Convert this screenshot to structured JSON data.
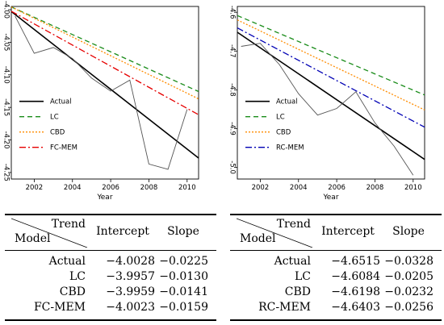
{
  "chart_data": [
    {
      "type": "line",
      "xlabel": "Year",
      "ylabel": "",
      "xlim": [
        2000.8,
        2010.6
      ],
      "ylim": [
        -4.26,
        -3.995
      ],
      "xticks": [
        2002,
        2004,
        2006,
        2008,
        2010
      ],
      "yticks": [
        -4.0,
        -4.05,
        -4.1,
        -4.15,
        -4.2,
        -4.25
      ],
      "ytick_labels": [
        "-4.00",
        "-4.05",
        "-4.10",
        "-4.15",
        "-4.20",
        "-4.25"
      ],
      "grid": false,
      "legend_position": "center-left",
      "series": [
        {
          "name": "Actual",
          "kind": "trend",
          "color": "#000000",
          "dash": "",
          "width": 1.6,
          "x": [
            2000.8,
            2010.6
          ],
          "y": [
            -4.0028,
            -4.2278
          ]
        },
        {
          "name": "",
          "kind": "observed",
          "color": "#555555",
          "dash": "",
          "width": 0.9,
          "x": [
            2001,
            2002,
            2003,
            2004,
            2005,
            2006,
            2007,
            2008,
            2009,
            2010
          ],
          "y": [
            -4.01,
            -4.067,
            -4.058,
            -4.075,
            -4.105,
            -4.125,
            -4.108,
            -4.237,
            -4.245,
            -4.153
          ]
        },
        {
          "name": "LC",
          "kind": "trend",
          "color": "#1a8c1a",
          "dash": "6,4",
          "width": 1.3,
          "x": [
            2000.8,
            2010.6
          ],
          "y": [
            -3.9957,
            -4.1257
          ]
        },
        {
          "name": "CBD",
          "kind": "trend",
          "color": "#ff8c00",
          "dash": "2,2",
          "width": 1.3,
          "x": [
            2000.8,
            2010.6
          ],
          "y": [
            -3.9959,
            -4.1369
          ]
        },
        {
          "name": "FC-MEM",
          "kind": "trend",
          "color": "#e60000",
          "dash": "8,3,2,3",
          "width": 1.3,
          "x": [
            2000.8,
            2010.6
          ],
          "y": [
            -4.0023,
            -4.1613
          ]
        }
      ]
    },
    {
      "type": "line",
      "xlabel": "Year",
      "ylabel": "",
      "xlim": [
        2000.8,
        2010.6
      ],
      "ylim": [
        -5.03,
        -4.585
      ],
      "xticks": [
        2002,
        2004,
        2006,
        2008,
        2010
      ],
      "yticks": [
        -4.6,
        -4.7,
        -4.8,
        -4.9,
        -5.0
      ],
      "ytick_labels": [
        "-4.6",
        "-4.7",
        "-4.8",
        "-4.9",
        "-5.0"
      ],
      "grid": false,
      "legend_position": "center-left",
      "series": [
        {
          "name": "Actual",
          "kind": "trend",
          "color": "#000000",
          "dash": "",
          "width": 1.6,
          "x": [
            2000.8,
            2010.6
          ],
          "y": [
            -4.6515,
            -4.9795
          ]
        },
        {
          "name": "",
          "kind": "observed",
          "color": "#555555",
          "dash": "",
          "width": 0.9,
          "x": [
            2001,
            2002,
            2003,
            2004,
            2005,
            2006,
            2007,
            2008,
            2009,
            2010
          ],
          "y": [
            -4.688,
            -4.68,
            -4.735,
            -4.81,
            -4.865,
            -4.848,
            -4.805,
            -4.885,
            -4.945,
            -5.02
          ]
        },
        {
          "name": "LC",
          "kind": "trend",
          "color": "#1a8c1a",
          "dash": "6,4",
          "width": 1.3,
          "x": [
            2000.8,
            2010.6
          ],
          "y": [
            -4.6084,
            -4.8134
          ]
        },
        {
          "name": "CBD",
          "kind": "trend",
          "color": "#ff8c00",
          "dash": "2,2",
          "width": 1.3,
          "x": [
            2000.8,
            2010.6
          ],
          "y": [
            -4.6198,
            -4.8518
          ]
        },
        {
          "name": "RC-MEM",
          "kind": "trend",
          "color": "#0000b4",
          "dash": "8,3,2,3",
          "width": 1.3,
          "x": [
            2000.8,
            2010.6
          ],
          "y": [
            -4.6403,
            -4.8963
          ]
        }
      ]
    }
  ],
  "tables": [
    {
      "header": {
        "trend": "Trend",
        "model": "Model",
        "intercept": "Intercept",
        "slope": "Slope"
      },
      "rows": [
        {
          "model": "Actual",
          "intercept": "−4.0028",
          "slope": "−0.0225"
        },
        {
          "model": "LC",
          "intercept": "−3.9957",
          "slope": "−0.0130"
        },
        {
          "model": "CBD",
          "intercept": "−3.9959",
          "slope": "−0.0141"
        },
        {
          "model": "FC-MEM",
          "intercept": "−4.0023",
          "slope": "−0.0159"
        }
      ]
    },
    {
      "header": {
        "trend": "Trend",
        "model": "Model",
        "intercept": "Intercept",
        "slope": "Slope"
      },
      "rows": [
        {
          "model": "Actual",
          "intercept": "−4.6515",
          "slope": "−0.0328"
        },
        {
          "model": "LC",
          "intercept": "−4.6084",
          "slope": "−0.0205"
        },
        {
          "model": "CBD",
          "intercept": "−4.6198",
          "slope": "−0.0232"
        },
        {
          "model": "RC-MEM",
          "intercept": "−4.6403",
          "slope": "−0.0256"
        }
      ]
    }
  ]
}
